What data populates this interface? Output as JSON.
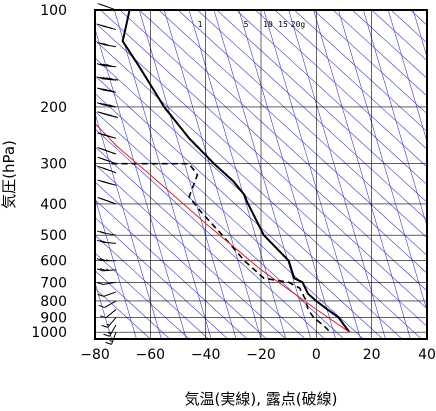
{
  "chart_data": {
    "type": "line",
    "title": "",
    "xlabel": "気温(実線), 露点(破線)",
    "ylabel": "気圧(hPa)",
    "xlim": [
      -80,
      40
    ],
    "ylim": [
      1050,
      100
    ],
    "y_scale": "log",
    "x_ticks": [
      "−80",
      "−60",
      "−40",
      "−20",
      "0",
      "20",
      "40"
    ],
    "x_tick_values": [
      -80,
      -60,
      -40,
      -20,
      0,
      20,
      40
    ],
    "y_ticks": [
      "100",
      "200",
      "300",
      "400",
      "500",
      "600",
      "700",
      "800",
      "900",
      "1000"
    ],
    "y_tick_values": [
      100,
      200,
      300,
      400,
      500,
      600,
      700,
      800,
      900,
      1000
    ],
    "mixing_ratio_labels": [
      "1",
      "5",
      "10",
      "15",
      "20g"
    ],
    "colors": {
      "frame": "#000000",
      "isopleth": "#3b3bd6",
      "grid": "#000000",
      "parcel": "#e02020",
      "temperature": "#000000",
      "dewpoint": "#000000"
    },
    "series": [
      {
        "style": "solid",
        "points": [
          [
            -67.5,
            100
          ],
          [
            -70,
            125
          ],
          [
            -64,
            150
          ],
          [
            -55,
            200
          ],
          [
            -46,
            250
          ],
          [
            -37,
            300
          ],
          [
            -30,
            340
          ],
          [
            -26,
            375
          ],
          [
            -25,
            395
          ],
          [
            -24,
            410
          ],
          [
            -19,
            500
          ],
          [
            -10,
            600
          ],
          [
            -8,
            680
          ],
          [
            -5,
            700
          ],
          [
            -3,
            760
          ],
          [
            0,
            800
          ],
          [
            4,
            850
          ],
          [
            8,
            900
          ],
          [
            10,
            950
          ],
          [
            12,
            1000
          ]
        ]
      },
      {
        "style": "dashed",
        "points": [
          [
            -74,
            300
          ],
          [
            -46,
            300
          ],
          [
            -43,
            325
          ],
          [
            -46,
            380
          ],
          [
            -42,
            420
          ],
          [
            -34,
            500
          ],
          [
            -26,
            600
          ],
          [
            -19,
            680
          ],
          [
            -10,
            700
          ],
          [
            -6,
            730
          ],
          [
            -4,
            790
          ],
          [
            -3,
            850
          ],
          [
            -1,
            900
          ],
          [
            3,
            960
          ],
          [
            5,
            1000
          ]
        ]
      },
      {
        "style": "solid",
        "points": [
          [
            -80,
            225
          ],
          [
            -72,
            265
          ],
          [
            -60,
            325
          ],
          [
            -40,
            460
          ],
          [
            -20,
            640
          ],
          [
            0,
            850
          ],
          [
            12,
            1000
          ]
        ]
      }
    ],
    "wind_barbs": [
      {
        "p": 100,
        "dir": 290,
        "speed": 20
      },
      {
        "p": 115,
        "dir": 285,
        "speed": 25
      },
      {
        "p": 130,
        "dir": 280,
        "speed": 30
      },
      {
        "p": 150,
        "dir": 275,
        "speed": 40
      },
      {
        "p": 165,
        "dir": 275,
        "speed": 45
      },
      {
        "p": 180,
        "dir": 280,
        "speed": 50
      },
      {
        "p": 200,
        "dir": 280,
        "speed": 50
      },
      {
        "p": 215,
        "dir": 285,
        "speed": 45
      },
      {
        "p": 250,
        "dir": 285,
        "speed": 40
      },
      {
        "p": 280,
        "dir": 290,
        "speed": 35
      },
      {
        "p": 300,
        "dir": 290,
        "speed": 30
      },
      {
        "p": 320,
        "dir": 290,
        "speed": 30
      },
      {
        "p": 350,
        "dir": 285,
        "speed": 25
      },
      {
        "p": 400,
        "dir": 290,
        "speed": 25
      },
      {
        "p": 500,
        "dir": 280,
        "speed": 20
      },
      {
        "p": 530,
        "dir": 275,
        "speed": 20
      },
      {
        "p": 600,
        "dir": 270,
        "speed": 15
      },
      {
        "p": 640,
        "dir": 265,
        "speed": 15
      },
      {
        "p": 700,
        "dir": 260,
        "speed": 10
      },
      {
        "p": 750,
        "dir": 250,
        "speed": 10
      },
      {
        "p": 800,
        "dir": 240,
        "speed": 10
      },
      {
        "p": 850,
        "dir": 230,
        "speed": 10
      },
      {
        "p": 900,
        "dir": 220,
        "speed": 5
      },
      {
        "p": 950,
        "dir": 210,
        "speed": 5
      },
      {
        "p": 1000,
        "dir": 200,
        "speed": 5
      }
    ]
  }
}
